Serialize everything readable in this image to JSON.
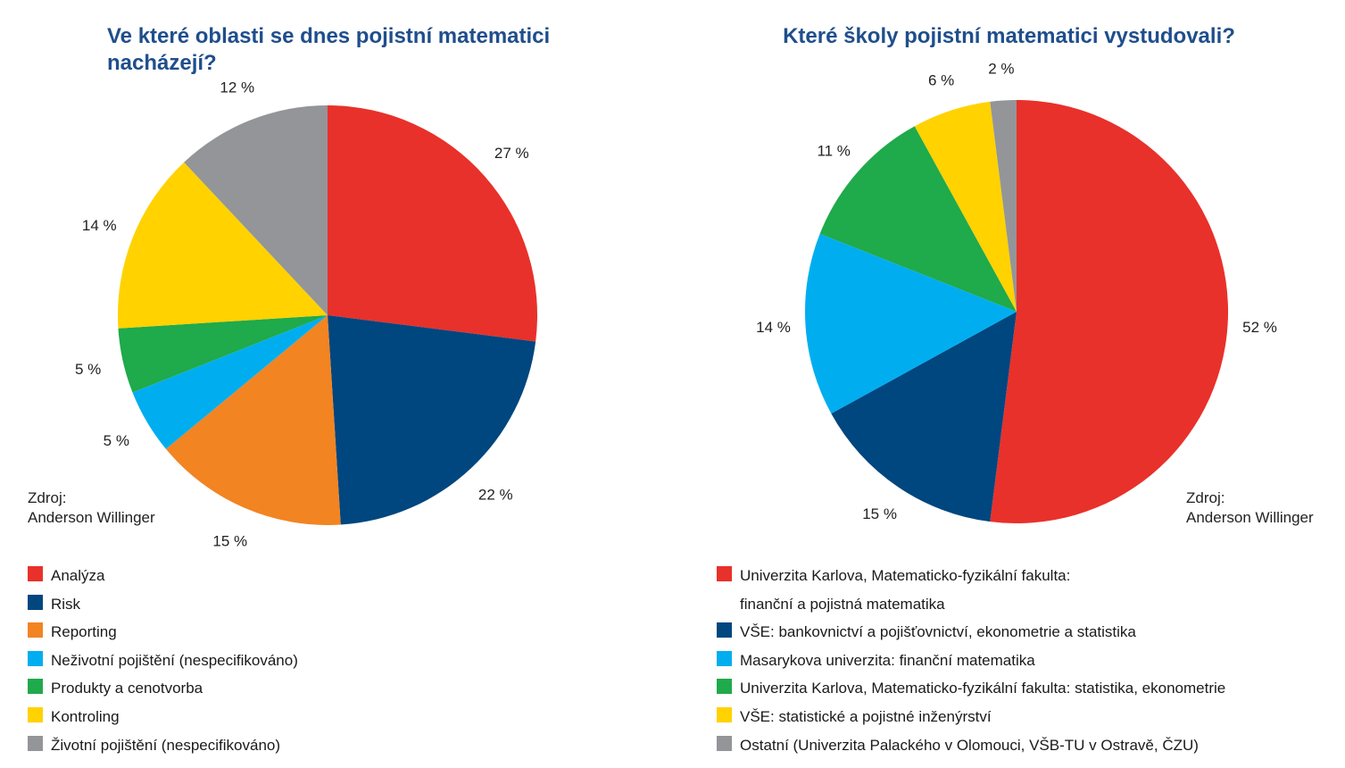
{
  "chart_data": [
    {
      "type": "pie",
      "title": "Ve které oblasti se dnes pojistní matematici nacházejí?",
      "start_angle_deg": 0,
      "slices": [
        {
          "label": "Analýza",
          "value": 27,
          "value_label": "27 %",
          "color": "#e8312a"
        },
        {
          "label": "Risk",
          "value": 22,
          "value_label": "22 %",
          "color": "#00467f"
        },
        {
          "label": "Reporting",
          "value": 15,
          "value_label": "15 %",
          "color": "#f28422"
        },
        {
          "label": "Neživotní pojištění (nespecifikováno)",
          "value": 5,
          "value_label": "5 %",
          "color": "#00aeef"
        },
        {
          "label": "Produkty a cenotvorba",
          "value": 5,
          "value_label": "5 %",
          "color": "#1faa4b"
        },
        {
          "label": "Kontroling",
          "value": 14,
          "value_label": "14 %",
          "color": "#ffd200"
        },
        {
          "label": "Životní pojištění (nespecifikováno)",
          "value": 12,
          "value_label": "12 %",
          "color": "#939598"
        }
      ],
      "source": [
        "Zdroj:",
        "Anderson Willinger"
      ]
    },
    {
      "type": "pie",
      "title": "Které školy pojistní matematici vystudovali?",
      "start_angle_deg": 0,
      "slices": [
        {
          "label": "Univerzita Karlova, Matematicko-fyzikální fakulta: finanční a pojistná matematika",
          "label_lines": [
            "Univerzita Karlova, Matematicko-fyzikální fakulta:",
            "finanční a pojistná matematika"
          ],
          "value": 52,
          "value_label": "52 %",
          "color": "#e8312a"
        },
        {
          "label": "VŠE: bankovnictví a pojišťovnictví, ekonometrie a statistika",
          "value": 15,
          "value_label": "15 %",
          "color": "#00467f"
        },
        {
          "label": "Masarykova univerzita: finanční matematika",
          "value": 14,
          "value_label": "14 %",
          "color": "#00aeef"
        },
        {
          "label": "Univerzita Karlova, Matematicko-fyzikální fakulta: statistika, ekonometrie",
          "value": 11,
          "value_label": "11 %",
          "color": "#1faa4b"
        },
        {
          "label": "VŠE: statistické a pojistné inženýrství",
          "value": 6,
          "value_label": "6 %",
          "color": "#ffd200"
        },
        {
          "label": "Ostatní (Univerzita Palackého v Olomouci, VŠB-TU v Ostravě, ČZU)",
          "value": 2,
          "value_label": "2 %",
          "color": "#939598"
        }
      ],
      "source": [
        "Zdroj:",
        "Anderson Willinger"
      ]
    }
  ]
}
